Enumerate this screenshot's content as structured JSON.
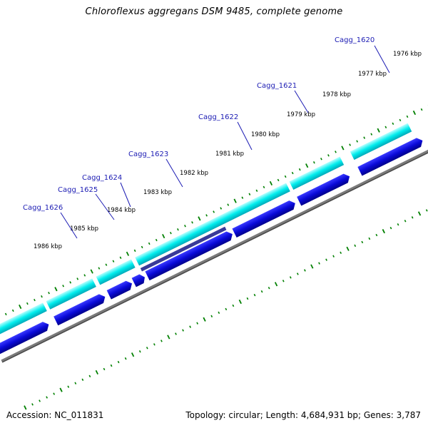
{
  "title": "Chloroflexus aggregans DSM 9485, complete genome",
  "footer": {
    "accession": "Accession: NC_011831",
    "summary": "Topology: circular; Length: 4,684,931 bp; Genes: 3,787"
  },
  "ruler": {
    "labels": [
      "1976 kbp",
      "1977 kbp",
      "1978 kbp",
      "1979 kbp",
      "1980 kbp",
      "1981 kbp",
      "1982 kbp",
      "1983 kbp",
      "1984 kbp",
      "1985 kbp",
      "1986 kbp"
    ]
  },
  "genes": [
    "Cagg_1620",
    "Cagg_1621",
    "Cagg_1622",
    "Cagg_1623",
    "Cagg_1624",
    "Cagg_1625",
    "Cagg_1626"
  ],
  "colors": {
    "cds_outer": "#00eded",
    "cds_inner": "#0a0ad8",
    "selected_cds": "#3a3a98",
    "backbone": "#7a7a7a",
    "ticks": "#008000",
    "gene_label": "#1b1bb3"
  }
}
